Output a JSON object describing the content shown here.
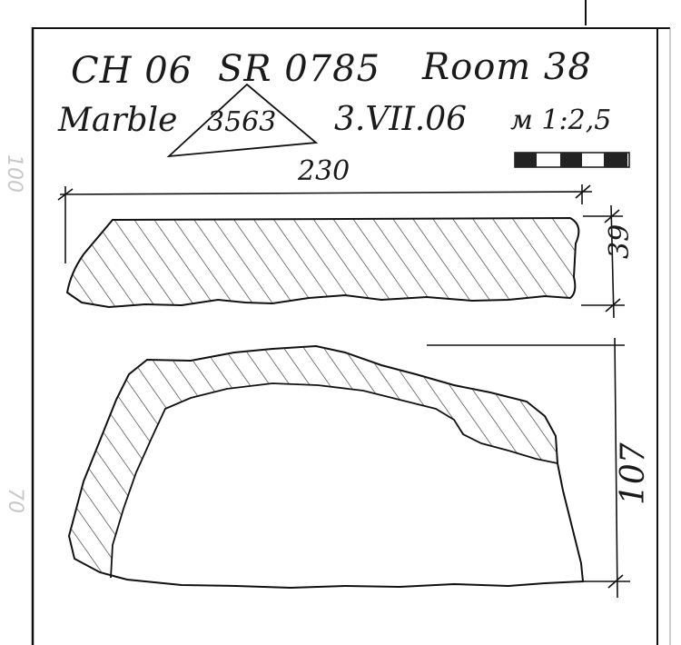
{
  "header": {
    "line1": {
      "site": "CH 06",
      "record": "SR 0785",
      "room": "Room 38"
    },
    "line2": {
      "material": "Marble",
      "find_no": "3563",
      "date": "3.VII.06",
      "scale": "м 1:2,5"
    }
  },
  "dimensions": {
    "width": "230",
    "thickness": "39",
    "height": "107"
  },
  "margin_marks": {
    "top": "100",
    "lower": "70"
  }
}
